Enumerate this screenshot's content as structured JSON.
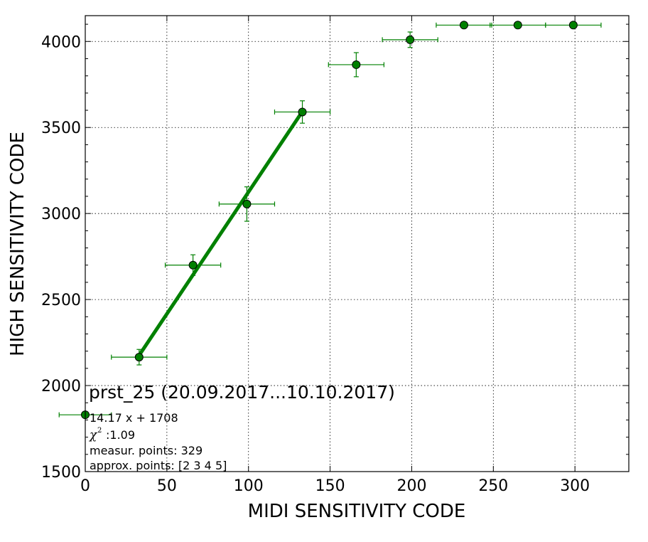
{
  "chart_data": {
    "type": "scatter",
    "xlabel": "MIDI SENSITIVITY CODE",
    "ylabel": "HIGH SENSITIVITY CODE",
    "xlim": [
      0,
      333
    ],
    "ylim": [
      1500,
      4150
    ],
    "xticks": [
      0,
      50,
      100,
      150,
      200,
      250,
      300
    ],
    "yticks": [
      1500,
      2000,
      2500,
      3000,
      3500,
      4000
    ],
    "grid": true,
    "color": "#008000",
    "points": [
      {
        "x": 0,
        "y": 1830,
        "xerr": 16,
        "yerr": 0
      },
      {
        "x": 33,
        "y": 2165,
        "xerr": 17,
        "yerr": 45
      },
      {
        "x": 66,
        "y": 2700,
        "xerr": 17,
        "yerr": 60
      },
      {
        "x": 99,
        "y": 3055,
        "xerr": 17,
        "yerr": 100
      },
      {
        "x": 133,
        "y": 3590,
        "xerr": 17,
        "yerr": 65
      },
      {
        "x": 166,
        "y": 3865,
        "xerr": 17,
        "yerr": 70
      },
      {
        "x": 199,
        "y": 4010,
        "xerr": 17,
        "yerr": 45
      },
      {
        "x": 232,
        "y": 4095,
        "xerr": 17,
        "yerr": 0
      },
      {
        "x": 265,
        "y": 4095,
        "xerr": 17,
        "yerr": 0
      },
      {
        "x": 299,
        "y": 4095,
        "xerr": 17,
        "yerr": 0
      }
    ],
    "fit": {
      "slope": 14.17,
      "intercept": 1708,
      "x_range": [
        33,
        133
      ]
    },
    "annotation": {
      "title": "prst_25 (20.09.2017...10.10.2017)",
      "equation": "14.17 x + 1708",
      "chi2": ":1.09",
      "measur_points": "measur. points: 329",
      "approx_points": "approx. points: [2 3 4 5]"
    }
  }
}
